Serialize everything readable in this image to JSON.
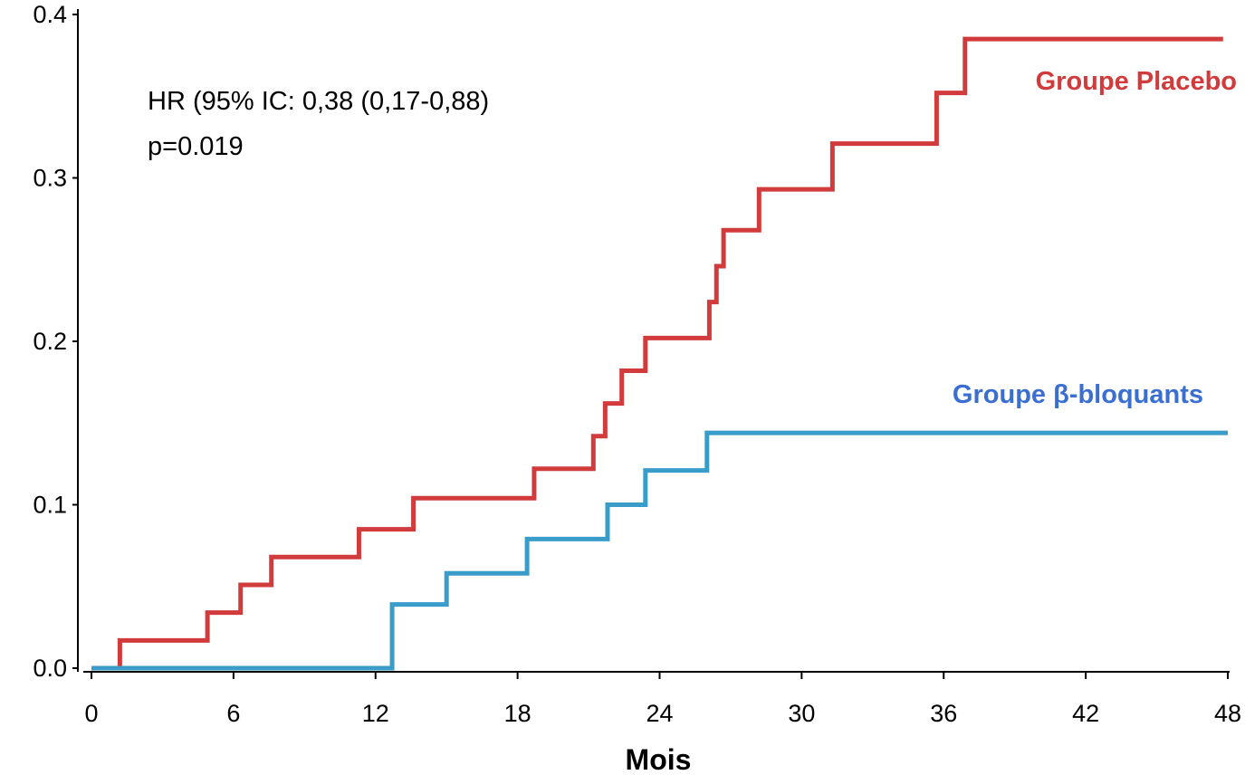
{
  "chart_data": {
    "type": "line",
    "step": true,
    "xlabel": "Mois",
    "ylabel": "",
    "xlim": [
      0,
      48
    ],
    "ylim": [
      0,
      0.4
    ],
    "x_ticks": [
      0,
      6,
      12,
      18,
      24,
      30,
      36,
      42,
      48
    ],
    "y_ticks": [
      "0.0",
      "0.1",
      "0.2",
      "0.3",
      "0.4"
    ],
    "grid": false,
    "annotations": {
      "hr_text": "HR (95% IC: 0,38 (0,17-0,88)",
      "p_text": "p=0.019"
    },
    "series": [
      {
        "name": "Groupe Placebo",
        "color": "#d13b3b",
        "label_color": "#d13b3b",
        "x": [
          0,
          1.2,
          4.9,
          6.3,
          7.6,
          11.3,
          13.6,
          18.7,
          21.2,
          21.7,
          22.4,
          23.4,
          26.1,
          26.4,
          26.7,
          28.2,
          31.3,
          35.7,
          36.9,
          47.8
        ],
        "y": [
          0,
          0.017,
          0.034,
          0.051,
          0.068,
          0.085,
          0.104,
          0.122,
          0.142,
          0.162,
          0.182,
          0.202,
          0.224,
          0.246,
          0.268,
          0.293,
          0.321,
          0.352,
          0.385,
          0.385
        ]
      },
      {
        "name": "Groupe β-bloquants",
        "color": "#3a9cc9",
        "label_color": "#3a6fd1",
        "x": [
          0,
          12.7,
          15.0,
          18.4,
          21.8,
          23.4,
          26.0,
          48
        ],
        "y": [
          0,
          0.039,
          0.058,
          0.079,
          0.1,
          0.121,
          0.144,
          0.144
        ]
      }
    ]
  }
}
